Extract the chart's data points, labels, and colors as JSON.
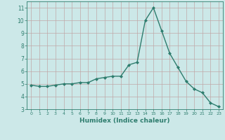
{
  "x": [
    0,
    1,
    2,
    3,
    4,
    5,
    6,
    7,
    8,
    9,
    10,
    11,
    12,
    13,
    14,
    15,
    16,
    17,
    18,
    19,
    20,
    21,
    22,
    23
  ],
  "y": [
    4.9,
    4.8,
    4.8,
    4.9,
    5.0,
    5.0,
    5.1,
    5.1,
    5.4,
    5.5,
    5.6,
    5.6,
    6.5,
    6.7,
    10.0,
    11.0,
    9.2,
    7.4,
    6.3,
    5.2,
    4.6,
    4.3,
    3.5,
    3.2
  ],
  "ylim": [
    3,
    11.5
  ],
  "xlim": [
    -0.5,
    23.5
  ],
  "yticks": [
    3,
    4,
    5,
    6,
    7,
    8,
    9,
    10,
    11
  ],
  "xticks": [
    0,
    1,
    2,
    3,
    4,
    5,
    6,
    7,
    8,
    9,
    10,
    11,
    12,
    13,
    14,
    15,
    16,
    17,
    18,
    19,
    20,
    21,
    22,
    23
  ],
  "xlabel": "Humidex (Indice chaleur)",
  "line_color": "#2e7d6e",
  "marker_color": "#2e7d6e",
  "bg_color": "#cce8e8",
  "grid_color": "#c0a8a8",
  "axis_label_color": "#2e7d6e",
  "tick_label_color": "#2e7d6e"
}
